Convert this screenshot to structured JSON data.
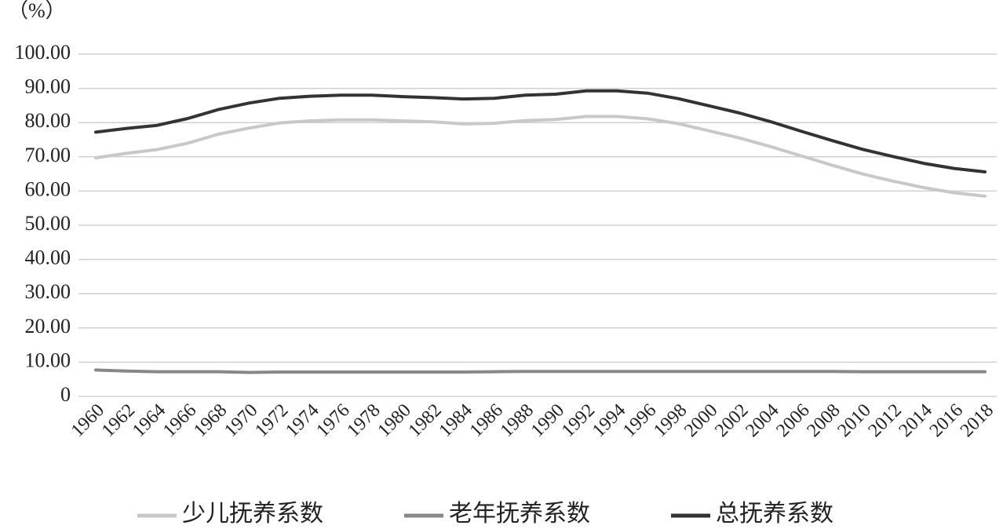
{
  "chart_data": {
    "type": "line",
    "y_label": "（%）",
    "categories": [
      "1960",
      "1962",
      "1964",
      "1966",
      "1968",
      "1970",
      "1972",
      "1974",
      "1976",
      "1978",
      "1980",
      "1982",
      "1984",
      "1986",
      "1988",
      "1990",
      "1992",
      "1994",
      "1996",
      "1998",
      "2000",
      "2002",
      "2004",
      "2006",
      "2008",
      "2010",
      "2012",
      "2014",
      "2016",
      "2018"
    ],
    "series": [
      {
        "name": "少儿抚养系数",
        "color": "#c8c8c8",
        "values": [
          69.7,
          71.0,
          72.1,
          74.0,
          76.6,
          78.4,
          79.9,
          80.5,
          80.8,
          80.8,
          80.5,
          80.2,
          79.6,
          79.8,
          80.6,
          80.9,
          81.8,
          81.8,
          81.1,
          79.7,
          77.6,
          75.5,
          73.0,
          70.3,
          67.6,
          65.0,
          62.9,
          61.0,
          59.5,
          58.5
        ]
      },
      {
        "name": "老年抚养系数",
        "color": "#888888",
        "values": [
          7.7,
          7.4,
          7.2,
          7.2,
          7.2,
          7.0,
          7.1,
          7.1,
          7.1,
          7.1,
          7.1,
          7.1,
          7.1,
          7.2,
          7.3,
          7.3,
          7.3,
          7.3,
          7.3,
          7.3,
          7.3,
          7.3,
          7.3,
          7.3,
          7.3,
          7.2,
          7.2,
          7.2,
          7.2,
          7.2
        ]
      },
      {
        "name": "总抚养系数",
        "color": "#333333",
        "values": [
          77.2,
          78.3,
          79.2,
          81.2,
          83.8,
          85.7,
          87.1,
          87.7,
          88.0,
          88.0,
          87.6,
          87.3,
          86.9,
          87.1,
          88.0,
          88.3,
          89.3,
          89.3,
          88.6,
          87.0,
          84.9,
          82.8,
          80.3,
          77.5,
          74.8,
          72.2,
          70.1,
          68.1,
          66.6,
          65.6
        ]
      }
    ],
    "ylim": [
      0,
      100
    ],
    "yticks": [
      0,
      {
        "value": 10,
        "label": "10.00"
      },
      {
        "value": 20,
        "label": "20.00"
      },
      {
        "value": 30,
        "label": "30.00"
      },
      {
        "value": 40,
        "label": "40.00"
      },
      {
        "value": 50,
        "label": "50.00"
      },
      {
        "value": 60,
        "label": "60.00"
      },
      {
        "value": 70,
        "label": "70.00"
      },
      {
        "value": 80,
        "label": "80.00"
      },
      {
        "value": 90,
        "label": "90.00"
      },
      {
        "value": 100,
        "label": "100.00"
      }
    ],
    "grid": true,
    "legend": "bottom"
  }
}
